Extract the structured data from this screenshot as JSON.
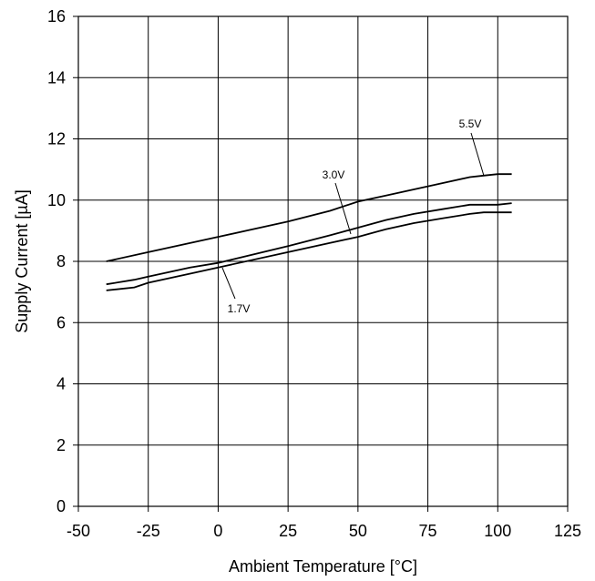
{
  "chart_data": {
    "type": "line",
    "xlabel": "Ambient Temperature [°C]",
    "ylabel": "Supply Current [µA]",
    "xlim": [
      -50,
      125
    ],
    "ylim": [
      0,
      16
    ],
    "xticks": [
      -50,
      -25,
      0,
      25,
      50,
      75,
      100,
      125
    ],
    "yticks": [
      0,
      2,
      4,
      6,
      8,
      10,
      12,
      14,
      16
    ],
    "grid": true,
    "legend": "none",
    "series": [
      {
        "name": "5.5V",
        "x": [
          -40,
          -25,
          0,
          25,
          40,
          50,
          60,
          70,
          80,
          90,
          95,
          100,
          105
        ],
        "y": [
          8.0,
          8.3,
          8.8,
          9.3,
          9.65,
          9.95,
          10.15,
          10.35,
          10.55,
          10.75,
          10.8,
          10.85,
          10.85
        ]
      },
      {
        "name": "3.0V",
        "x": [
          -40,
          -30,
          -25,
          -10,
          0,
          25,
          40,
          50,
          60,
          70,
          80,
          90,
          95,
          100,
          105
        ],
        "y": [
          7.25,
          7.4,
          7.5,
          7.8,
          7.95,
          8.5,
          8.85,
          9.1,
          9.35,
          9.55,
          9.7,
          9.85,
          9.85,
          9.85,
          9.9
        ]
      },
      {
        "name": "1.7V",
        "x": [
          -40,
          -30,
          -25,
          -10,
          0,
          25,
          40,
          50,
          60,
          70,
          80,
          90,
          95,
          100,
          105
        ],
        "y": [
          7.05,
          7.15,
          7.3,
          7.6,
          7.8,
          8.3,
          8.6,
          8.8,
          9.05,
          9.25,
          9.4,
          9.55,
          9.6,
          9.6,
          9.6
        ]
      }
    ]
  }
}
